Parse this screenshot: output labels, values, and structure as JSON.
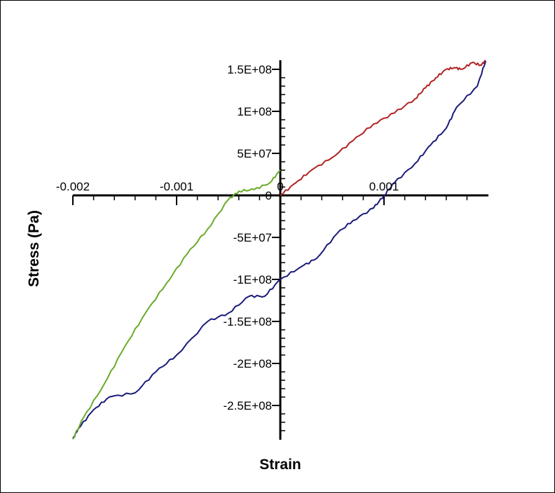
{
  "chart_data": {
    "type": "line",
    "title": "",
    "xlabel": "Strain",
    "ylabel": "Stress (Pa)",
    "xlim": [
      -0.002,
      0.002
    ],
    "ylim": [
      -290000000.0,
      160000000.0
    ],
    "grid": false,
    "x_ticks": [
      {
        "value": -0.002,
        "label": "-0.002"
      },
      {
        "value": -0.001,
        "label": "-0.001"
      },
      {
        "value": 0,
        "label": "0"
      },
      {
        "value": 0.001,
        "label": "0.001"
      }
    ],
    "y_ticks": [
      {
        "value": 150000000,
        "label": "1.5E+08"
      },
      {
        "value": 100000000,
        "label": "1E+08"
      },
      {
        "value": 50000000,
        "label": "5E+07"
      },
      {
        "value": 0,
        "label": "0"
      },
      {
        "value": -50000000,
        "label": "-5E+07"
      },
      {
        "value": -100000000,
        "label": "-1E+08"
      },
      {
        "value": -150000000,
        "label": "-1.5E+08"
      },
      {
        "value": -200000000,
        "label": "-2E+08"
      },
      {
        "value": -250000000,
        "label": "-2.5E+08"
      }
    ],
    "series": [
      {
        "color": "#b22222",
        "x": [
          0,
          0.00015,
          0.0003,
          0.0005,
          0.0007,
          0.0009,
          0.0011,
          0.0013,
          0.0014,
          0.0015,
          0.0016,
          0.00168,
          0.00175,
          0.00185,
          0.00193,
          0.00198
        ],
        "y": [
          0,
          15000000,
          30000000,
          45000000,
          65000000,
          85000000,
          98000000,
          115000000,
          128000000,
          140000000,
          150000000,
          152000000,
          150000000,
          158000000,
          155000000,
          160000000
        ]
      },
      {
        "color": "#1a1a7a",
        "x": [
          0.00198,
          0.0019,
          0.0017,
          0.0016,
          0.00145,
          0.0013,
          0.0011,
          0.001,
          0.0009,
          0.0007,
          0.00055,
          0.00035,
          0.0002,
          0,
          -0.00015,
          -0.0003,
          -0.0005,
          -0.0007,
          -0.001,
          -0.0012,
          -0.0014,
          -0.00165,
          -0.0018,
          -0.00195,
          -0.002
        ],
        "y": [
          160000000,
          130000000,
          105000000,
          80000000,
          60000000,
          38000000,
          15000000,
          0,
          -15000000,
          -30000000,
          -45000000,
          -75000000,
          -85000000,
          -100000000,
          -120000000,
          -120000000,
          -140000000,
          -150000000,
          -190000000,
          -210000000,
          -235000000,
          -240000000,
          -255000000,
          -278000000,
          -290000000
        ]
      },
      {
        "color": "#6aaa2a",
        "x": [
          -0.002,
          -0.0019,
          -0.0017,
          -0.0015,
          -0.0013,
          -0.0011,
          -0.0009,
          -0.0007,
          -0.0005,
          -0.0004,
          -0.00025,
          -0.0001,
          0
        ],
        "y": [
          -290000000,
          -265000000,
          -225000000,
          -180000000,
          -140000000,
          -105000000,
          -70000000,
          -40000000,
          -5000000,
          5000000,
          7000000,
          15000000,
          30000000
        ]
      }
    ]
  }
}
